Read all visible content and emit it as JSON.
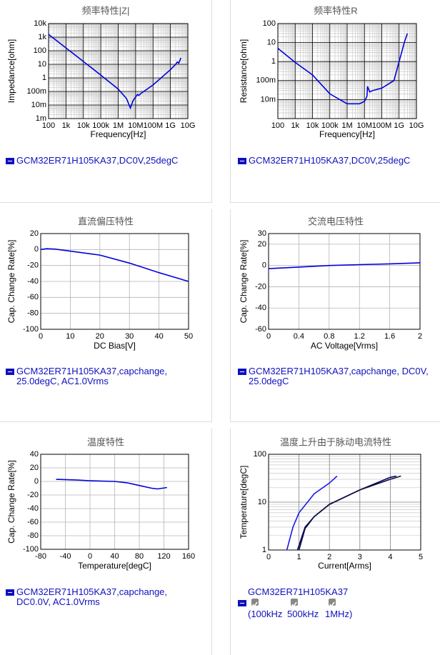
{
  "chart_data": [
    {
      "type": "line",
      "title": "频率特性|Z|",
      "xlabel": "Frequency[Hz]",
      "ylabel": "Impedance[ohm]",
      "xscale": "log",
      "yscale": "log",
      "grid": true,
      "minor_grid": true,
      "grid_color": "#000000",
      "xlim": [
        100,
        10000000000
      ],
      "ylim": [
        0.001,
        10000
      ],
      "xticks": [
        100,
        {
          "value": 1000,
          "label": "1k"
        },
        {
          "value": 10000,
          "label": "10k"
        },
        {
          "value": 100000,
          "label": "100k"
        },
        {
          "value": 1000000,
          "label": "1M"
        },
        {
          "value": 10000000,
          "label": "10M"
        },
        {
          "value": 100000000,
          "label": "100M"
        },
        {
          "value": 1000000000,
          "label": "1G"
        },
        {
          "value": 10000000000,
          "label": "10G"
        }
      ],
      "yticks": [
        {
          "value": 0.001,
          "label": "1m"
        },
        {
          "value": 0.01,
          "label": "10m"
        },
        {
          "value": 0.1,
          "label": "100m"
        },
        1,
        10,
        100,
        {
          "value": 1000,
          "label": "1k"
        },
        {
          "value": 10000,
          "label": "10k"
        }
      ],
      "x": [
        100,
        1000,
        10000,
        100000,
        1000000,
        3000000,
        5000000,
        7000000,
        10000000,
        13000000,
        15000000,
        20000000,
        100000000,
        1000000000,
        2000000000,
        2500000000,
        3000000000,
        4000000000
      ],
      "series": [
        {
          "name": "GCM32ER71H105KA37,DC0V,25degC",
          "color": "#0000dd",
          "values": [
            1600,
            160,
            16,
            1.6,
            0.15,
            0.03,
            0.006,
            0.02,
            0.04,
            0.06,
            0.05,
            0.07,
            0.3,
            4,
            10,
            15,
            12,
            30
          ]
        }
      ]
    },
    {
      "type": "line",
      "title": "频率特性R",
      "xlabel": "Frequency[Hz]",
      "ylabel": "Resistance[ohm]",
      "xscale": "log",
      "yscale": "log",
      "grid": true,
      "minor_grid": true,
      "grid_color": "#000000",
      "xlim": [
        100,
        10000000000
      ],
      "ylim": [
        0.001,
        100
      ],
      "xticks": [
        100,
        {
          "value": 1000,
          "label": "1k"
        },
        {
          "value": 10000,
          "label": "10k"
        },
        {
          "value": 100000,
          "label": "100k"
        },
        {
          "value": 1000000,
          "label": "1M"
        },
        {
          "value": 10000000,
          "label": "10M"
        },
        {
          "value": 100000000,
          "label": "100M"
        },
        {
          "value": 1000000000,
          "label": "1G"
        },
        {
          "value": 10000000000,
          "label": "10G"
        }
      ],
      "yticks": [
        {
          "value": 0.01,
          "label": "10m"
        },
        {
          "value": 0.1,
          "label": "100m"
        },
        1,
        10,
        100
      ],
      "x": [
        100,
        1000,
        10000,
        100000,
        1000000,
        5000000,
        10000000,
        14000000,
        15000000,
        20000000,
        30000000,
        100000000,
        500000000,
        1000000000,
        2000000000,
        3000000000
      ],
      "series": [
        {
          "name": "GCM32ER71H105KA37,DC0V,25degC",
          "color": "#0000dd",
          "values": [
            5,
            0.9,
            0.2,
            0.02,
            0.006,
            0.006,
            0.008,
            0.015,
            0.05,
            0.025,
            0.03,
            0.04,
            0.1,
            1,
            10,
            30
          ]
        }
      ]
    },
    {
      "type": "line",
      "title": "直流偏压特性",
      "xlabel": "DC Bias[V]",
      "ylabel": "Cap. Change Rate[%]",
      "grid": true,
      "grid_color": "#b4b4b4",
      "xlim": [
        0,
        50
      ],
      "ylim": [
        -100,
        20
      ],
      "xticks": [
        0,
        10,
        20,
        30,
        40,
        50
      ],
      "yticks": [
        -100,
        -80,
        -60,
        -40,
        -20,
        0,
        20
      ],
      "x": [
        0,
        2,
        5,
        10,
        20,
        30,
        40,
        50
      ],
      "series": [
        {
          "name": "GCM32ER71H105KA37,capchange, 25.0degC, AC1.0Vrms",
          "color": "#0000dd",
          "values": [
            0,
            1,
            0.5,
            -2,
            -7,
            -17,
            -29,
            -40
          ]
        }
      ]
    },
    {
      "type": "line",
      "title": "交流电压特性",
      "xlabel": "AC Voltage[Vrms]",
      "ylabel": "Cap. Change Rate[%]",
      "grid": true,
      "grid_color": "#b4b4b4",
      "xlim": [
        0,
        2
      ],
      "ylim": [
        -60,
        30
      ],
      "xticks": [
        0,
        0.4,
        0.8,
        1.2,
        1.6,
        2
      ],
      "yticks": [
        -60,
        -40,
        -20,
        0,
        20,
        30
      ],
      "x": [
        0,
        0.4,
        0.8,
        1.2,
        1.6,
        2
      ],
      "series": [
        {
          "name": "GCM32ER71H105KA37,capchange, DC0V, 25.0degC",
          "color": "#0000dd",
          "values": [
            -3,
            -1.5,
            0,
            0.8,
            1.5,
            2.5
          ]
        }
      ]
    },
    {
      "type": "line",
      "title": "温度特性",
      "xlabel": "Temperature[degC]",
      "ylabel": "Cap. Change Rate[%]",
      "grid": true,
      "grid_color": "#b4b4b4",
      "xlim": [
        -80,
        160
      ],
      "ylim": [
        -100,
        40
      ],
      "xticks": [
        -80,
        -40,
        0,
        40,
        80,
        120,
        160
      ],
      "yticks": [
        -100,
        -80,
        -60,
        -40,
        -20,
        0,
        20,
        40
      ],
      "x": [
        -55,
        -20,
        0,
        40,
        60,
        80,
        100,
        110,
        125
      ],
      "series": [
        {
          "name": "GCM32ER71H105KA37,capchange, DC0.0V, AC1.0Vrms",
          "color": "#0000dd",
          "values": [
            3,
            2,
            1,
            0,
            -2,
            -6,
            -10,
            -11,
            -9
          ]
        }
      ]
    },
    {
      "type": "line",
      "title": "温度上升由于脉动电流特性",
      "xlabel": "Current[Arms]",
      "ylabel": "Temperature[degC]",
      "yscale": "log",
      "grid": true,
      "minor_grid": true,
      "grid_color": "#808080",
      "xlim": [
        0,
        5
      ],
      "ylim": [
        1,
        100
      ],
      "xticks": [
        0,
        1,
        2,
        3,
        4,
        5
      ],
      "yticks": [
        1,
        10,
        100
      ],
      "legend_title": "GCM32ER71H105KA37",
      "series": [
        {
          "name": "(100kHz",
          "color": "#1a1ae6",
          "x": [
            0.6,
            0.8,
            1,
            1.5,
            2,
            2.25
          ],
          "values": [
            1,
            3,
            6,
            15,
            25,
            35
          ]
        },
        {
          "name": "500kHz",
          "color": "#000066",
          "x": [
            0.95,
            1.2,
            1.5,
            2,
            3,
            4,
            4.2
          ],
          "values": [
            1,
            3,
            5,
            9,
            18,
            33,
            35
          ]
        },
        {
          "name": "1MHz)",
          "color": "#101040",
          "x": [
            1,
            1.2,
            1.5,
            2,
            3,
            4,
            4.35
          ],
          "values": [
            1,
            2.8,
            5,
            9,
            18,
            30,
            35
          ]
        }
      ]
    }
  ]
}
